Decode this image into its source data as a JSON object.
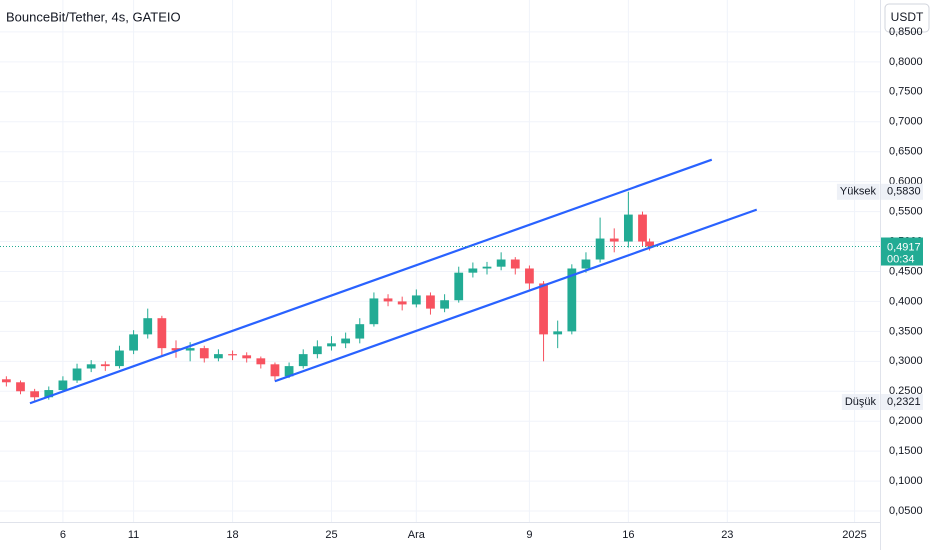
{
  "chart_data": {
    "type": "candlestick",
    "title": "BounceBit/Tether, 4s, GATEIO",
    "currency": "USDT",
    "x": [
      1,
      2,
      3,
      4,
      5,
      6,
      7,
      8,
      9,
      10,
      11,
      12,
      13,
      14,
      15,
      16,
      17,
      18,
      19,
      20,
      21,
      22,
      23,
      24,
      25,
      26,
      27,
      28,
      29,
      30,
      31,
      32,
      33,
      34,
      35,
      36,
      37,
      38,
      39,
      40,
      41,
      42,
      43,
      44,
      45,
      46,
      46.5
    ],
    "open": [
      0.27,
      0.265,
      0.25,
      0.24,
      0.252,
      0.268,
      0.288,
      0.295,
      0.292,
      0.318,
      0.345,
      0.372,
      0.322,
      0.318,
      0.322,
      0.305,
      0.312,
      0.31,
      0.305,
      0.295,
      0.275,
      0.292,
      0.312,
      0.325,
      0.33,
      0.338,
      0.362,
      0.405,
      0.4,
      0.395,
      0.41,
      0.388,
      0.402,
      0.448,
      0.455,
      0.458,
      0.47,
      0.455,
      0.43,
      0.345,
      0.35,
      0.455,
      0.47,
      0.505,
      0.5,
      0.545,
      0.5
    ],
    "high": [
      0.275,
      0.268,
      0.254,
      0.258,
      0.275,
      0.296,
      0.302,
      0.3,
      0.326,
      0.352,
      0.388,
      0.376,
      0.335,
      0.332,
      0.326,
      0.32,
      0.318,
      0.315,
      0.308,
      0.298,
      0.298,
      0.32,
      0.335,
      0.342,
      0.348,
      0.372,
      0.415,
      0.412,
      0.408,
      0.42,
      0.415,
      0.412,
      0.458,
      0.465,
      0.466,
      0.482,
      0.474,
      0.46,
      0.434,
      0.368,
      0.462,
      0.482,
      0.54,
      0.522,
      0.583,
      0.55,
      0.505
    ],
    "low": [
      0.258,
      0.245,
      0.2321,
      0.236,
      0.248,
      0.264,
      0.282,
      0.284,
      0.288,
      0.312,
      0.338,
      0.31,
      0.306,
      0.3,
      0.298,
      0.3,
      0.302,
      0.298,
      0.288,
      0.268,
      0.272,
      0.288,
      0.305,
      0.318,
      0.322,
      0.33,
      0.358,
      0.392,
      0.385,
      0.39,
      0.378,
      0.382,
      0.398,
      0.44,
      0.445,
      0.452,
      0.445,
      0.42,
      0.3,
      0.322,
      0.345,
      0.448,
      0.465,
      0.482,
      0.49,
      0.492,
      0.485
    ],
    "close": [
      0.265,
      0.25,
      0.24,
      0.252,
      0.268,
      0.288,
      0.295,
      0.292,
      0.318,
      0.345,
      0.372,
      0.322,
      0.318,
      0.322,
      0.305,
      0.312,
      0.31,
      0.305,
      0.295,
      0.275,
      0.292,
      0.312,
      0.325,
      0.33,
      0.338,
      0.362,
      0.405,
      0.4,
      0.395,
      0.41,
      0.388,
      0.402,
      0.448,
      0.455,
      0.458,
      0.47,
      0.455,
      0.43,
      0.345,
      0.35,
      0.455,
      0.47,
      0.505,
      0.5,
      0.545,
      0.5,
      0.4917
    ],
    "up_color": "#22ab94",
    "down_color": "#f7525f",
    "xlim": [
      0.55,
      62.8
    ],
    "xticks": [
      {
        "value": 5,
        "label": "6"
      },
      {
        "value": 10,
        "label": "11"
      },
      {
        "value": 17,
        "label": "18"
      },
      {
        "value": 24,
        "label": "25"
      },
      {
        "value": 30,
        "label": "Ara"
      },
      {
        "value": 38,
        "label": "9"
      },
      {
        "value": 45,
        "label": "16"
      },
      {
        "value": 52,
        "label": "23"
      },
      {
        "value": 61,
        "label": "2025"
      }
    ],
    "ylim": [
      0.0317,
      0.9033
    ],
    "yticks": [
      {
        "value": 0.05,
        "label": "0,0500"
      },
      {
        "value": 0.1,
        "label": "0,1000"
      },
      {
        "value": 0.15,
        "label": "0,1500"
      },
      {
        "value": 0.2,
        "label": "0,2000"
      },
      {
        "value": 0.25,
        "label": "0,2500"
      },
      {
        "value": 0.3,
        "label": "0,3000"
      },
      {
        "value": 0.35,
        "label": "0,3500"
      },
      {
        "value": 0.4,
        "label": "0,4000"
      },
      {
        "value": 0.45,
        "label": "0,4500"
      },
      {
        "value": 0.5,
        "label": "0,5000"
      },
      {
        "value": 0.55,
        "label": "0,5500"
      },
      {
        "value": 0.6,
        "label": "0,6000"
      },
      {
        "value": 0.65,
        "label": "0,6500"
      },
      {
        "value": 0.7,
        "label": "0,7000"
      },
      {
        "value": 0.75,
        "label": "0,7500"
      },
      {
        "value": 0.8,
        "label": "0,8000"
      },
      {
        "value": 0.85,
        "label": "0,8500"
      }
    ],
    "grid": true,
    "high_marker": {
      "text": "Yüksek",
      "value": 0.583,
      "value_label": "0,5830"
    },
    "low_marker": {
      "text": "Düşük",
      "value": 0.2321,
      "value_label": "0,2321"
    },
    "last_price": {
      "value": 0.4917,
      "value_label": "0,4917",
      "countdown": "00:34"
    },
    "trendline_color": "#2962ff",
    "trendlines": [
      {
        "x": [
          2.67,
          50.9
        ],
        "y": [
          0.23,
          0.6367
        ]
      },
      {
        "x": [
          19.99,
          54.08
        ],
        "y": [
          0.2667,
          0.5533
        ]
      }
    ]
  }
}
